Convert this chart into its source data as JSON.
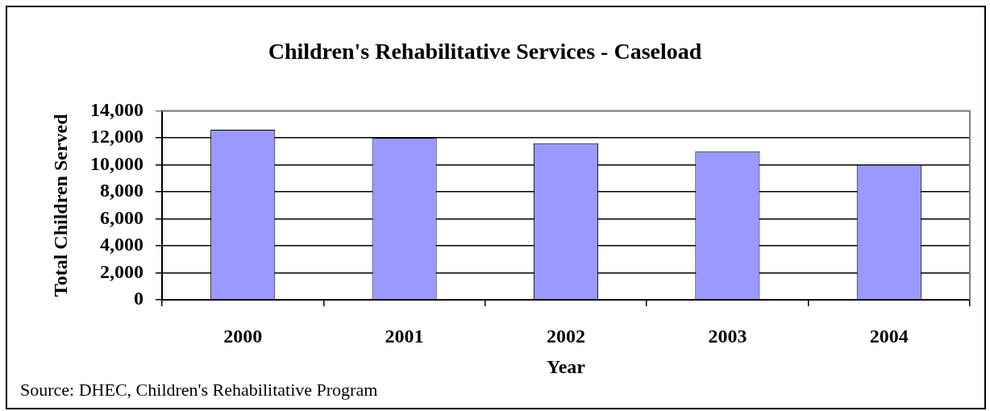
{
  "chart_data": {
    "type": "bar",
    "title": "Children's Rehabilitative Services - Caseload",
    "xlabel": "Year",
    "ylabel": "Total Children Served",
    "categories": [
      "2000",
      "2001",
      "2002",
      "2003",
      "2004"
    ],
    "values": [
      12600,
      12000,
      11600,
      11000,
      10000
    ],
    "color": "#9999ff",
    "ylim": [
      0,
      14000
    ],
    "yticks": [
      0,
      {
        "value": 2000,
        "label": "2,000"
      },
      {
        "value": 4000,
        "label": "4,000"
      },
      {
        "value": 6000,
        "label": "6,000"
      },
      {
        "value": 8000,
        "label": "8,000"
      },
      {
        "value": 10000,
        "label": "10,000"
      },
      {
        "value": 12000,
        "label": "12,000"
      },
      {
        "value": 14000,
        "label": "14,000"
      }
    ],
    "grid": "y",
    "annotations": [
      "Source: DHEC, Children's Rehabilitative Program"
    ]
  }
}
